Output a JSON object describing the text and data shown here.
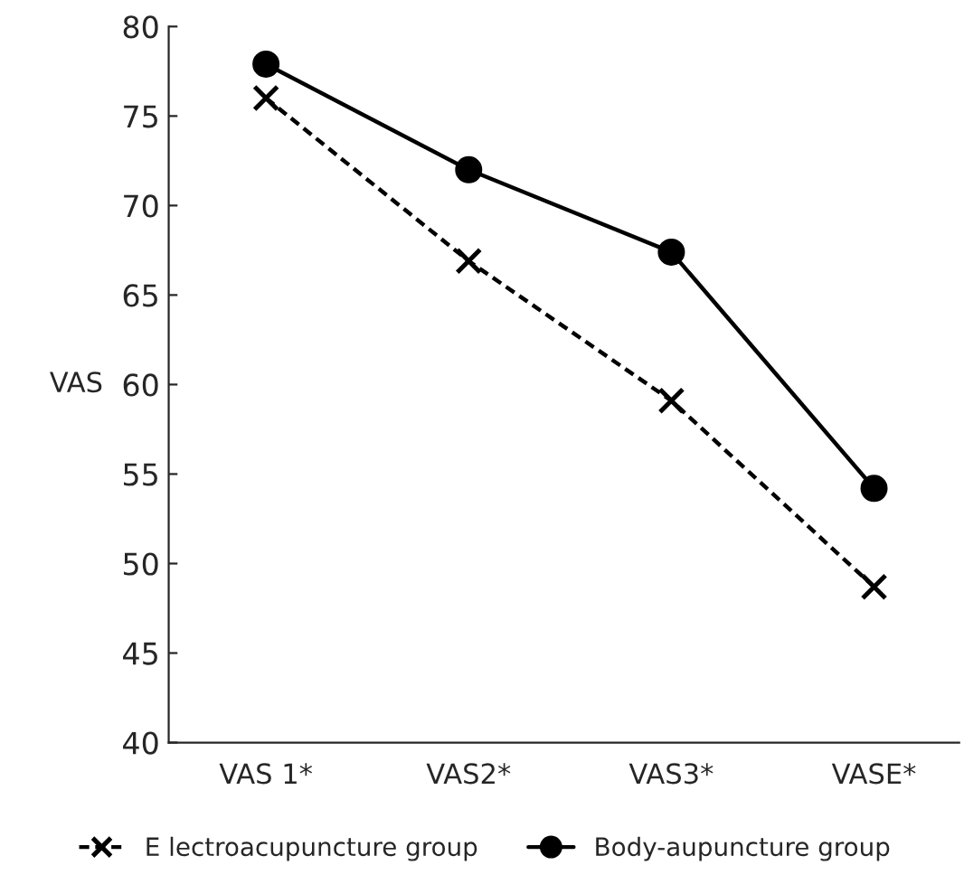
{
  "chart_data": {
    "type": "line",
    "ylabel": "VAS",
    "categories": [
      "VAS 1*",
      "VAS2*",
      "VAS3*",
      "VASE*"
    ],
    "series": [
      {
        "name": "E lectroacupuncture group",
        "color": "#000000",
        "values": [
          76.0,
          66.9,
          59.1,
          48.7
        ],
        "marker": "cross",
        "line_style": "dashed"
      },
      {
        "name": "Body-aupuncture group",
        "color": "#000000",
        "values": [
          77.9,
          72.0,
          67.4,
          54.2
        ],
        "marker": "circle",
        "line_style": "solid"
      }
    ],
    "ylim": [
      40,
      80
    ],
    "yticks": [
      40,
      45,
      50,
      55,
      60,
      65,
      70,
      75,
      80
    ],
    "grid": false,
    "legend": "bottom"
  }
}
